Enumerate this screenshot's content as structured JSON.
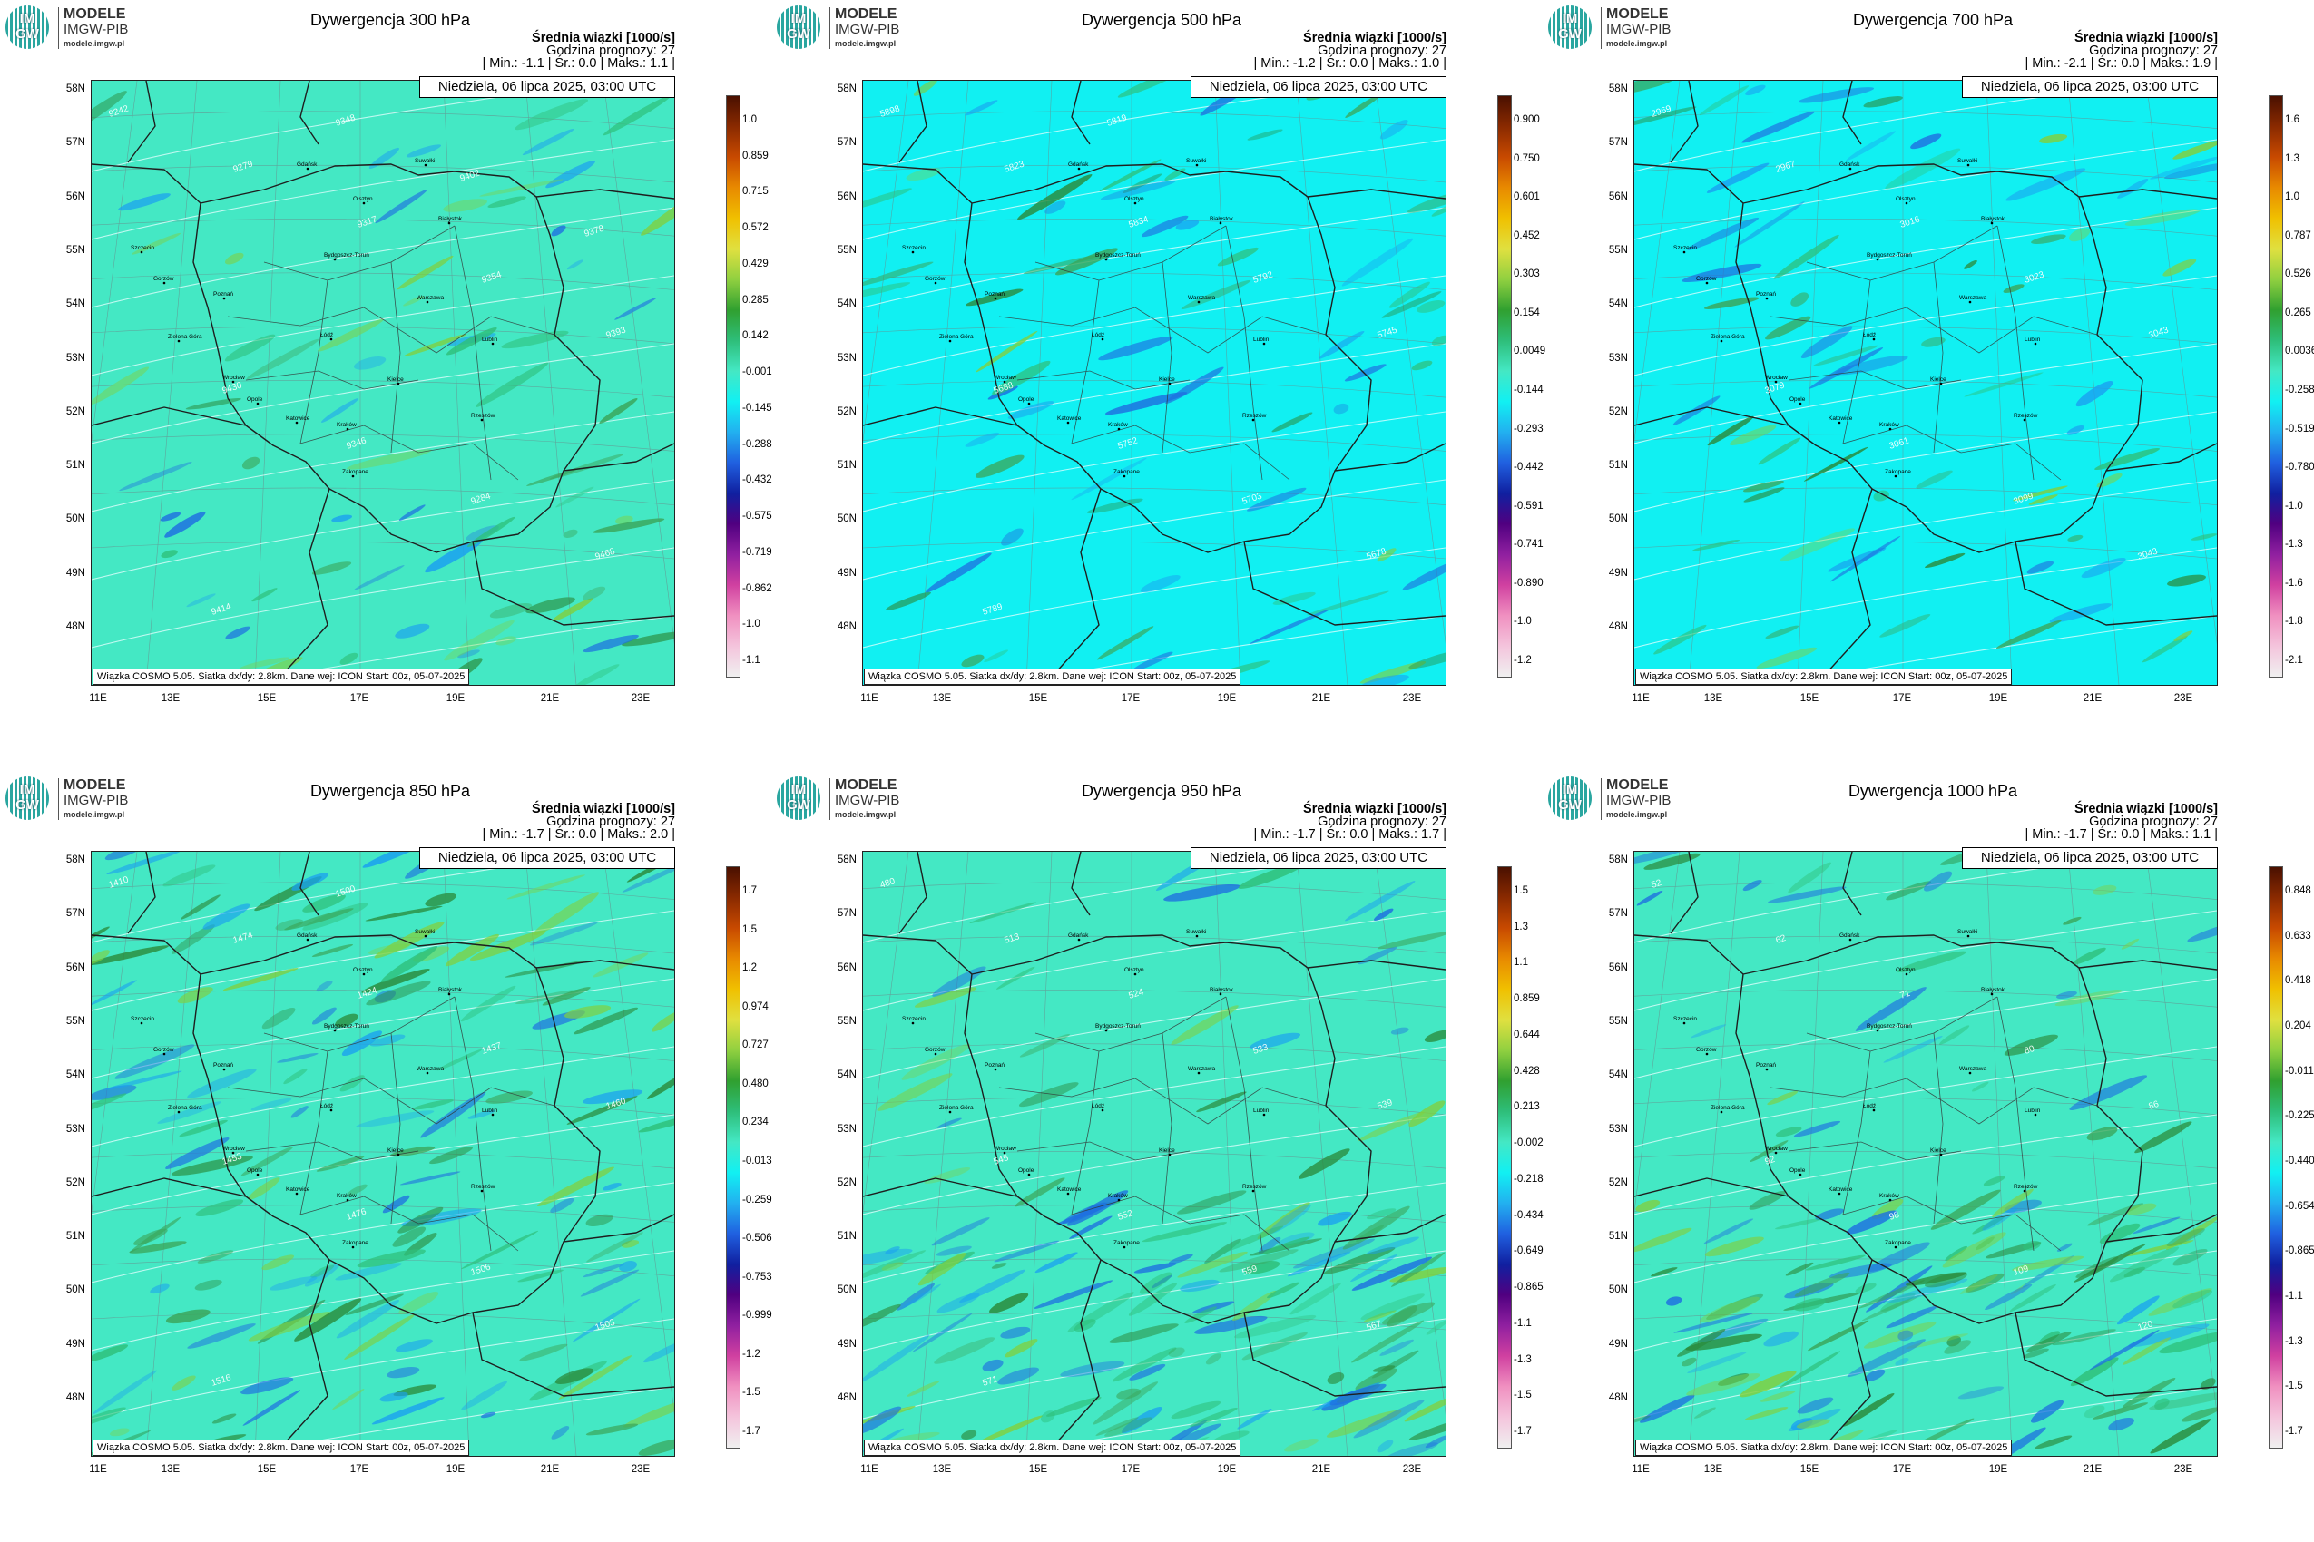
{
  "common": {
    "logo_mark": "IM GW",
    "logo_line1": "MODELE",
    "logo_line2": "IMGW-PIB",
    "logo_line3": "modele.imgw.pl",
    "subtitle": "Średnia wiązki [1000/s]",
    "forecast_hour": "Godzina prognozy: 27",
    "date": "Niedziela, 06 lipca 2025, 03:00 UTC",
    "footer": "Wiązka COSMO 5.05. Siatka dx/dy: 2.8km. Dane wej: ICON Start: 00z, 05-07-2025",
    "lat_labels": [
      "58N",
      "57N",
      "56N",
      "55N",
      "54N",
      "53N",
      "52N",
      "51N",
      "50N",
      "49N",
      "48N"
    ],
    "lon_labels": [
      "11E",
      "13E",
      "15E",
      "17E",
      "19E",
      "21E",
      "23E"
    ],
    "cities": [
      "Gdańsk",
      "Olsztyn",
      "Szczecin",
      "Suwałki",
      "Białystok",
      "Bydgoszcz-Toruń",
      "Gorzów",
      "Poznań",
      "Warszawa",
      "Zielona Góra",
      "Łódź",
      "Lublin",
      "Wrocław",
      "Kielce",
      "Opole",
      "Katowice",
      "Kraków",
      "Rzeszów",
      "Zakopane"
    ],
    "colors": {
      "background_teal": "#44e8c4",
      "background_cyan": "#11f0f2",
      "border": "#1e1e1e",
      "colorbar": [
        "#4a1000",
        "#8a2a00",
        "#c84a00",
        "#e88a00",
        "#f0c000",
        "#e0e040",
        "#90d040",
        "#30a030",
        "#2ebe7a",
        "#44e8c4",
        "#11f0f2",
        "#22b0f0",
        "#2060e0",
        "#1020a0",
        "#500080",
        "#9020a0",
        "#d040a0",
        "#f090c0",
        "#f4c4dc",
        "#f0f0f0"
      ]
    }
  },
  "panels": [
    {
      "title": "Dywergencja 300 hPa",
      "min_max": "| Min.:   -1.1 | Śr.:     0.0 | Maks.:   1.1 |",
      "bg": "#44e8c4",
      "colorbar_ticks": [
        "1.0",
        "0.859",
        "0.715",
        "0.572",
        "0.429",
        "0.285",
        "0.142",
        "-0.001",
        "-0.145",
        "-0.288",
        "-0.432",
        "-0.575",
        "-0.719",
        "-0.862",
        "-1.0",
        "-1.1"
      ],
      "contour_labels": [
        "9242",
        "9279",
        "9317",
        "9354",
        "9393",
        "9430",
        "9346",
        "9284",
        "9468",
        "9414",
        "9348",
        "9402",
        "9378"
      ]
    },
    {
      "title": "Dywergencja 500 hPa",
      "min_max": "| Min.:   -1.2 | Śr.:     0.0 | Maks.:   1.0 |",
      "bg": "#11f0f2",
      "colorbar_ticks": [
        "0.900",
        "0.750",
        "0.601",
        "0.452",
        "0.303",
        "0.154",
        "0.0049",
        "-0.144",
        "-0.293",
        "-0.442",
        "-0.591",
        "-0.741",
        "-0.890",
        "-1.0",
        "-1.2"
      ],
      "contour_labels": [
        "5898",
        "5823",
        "5834",
        "5792",
        "5745",
        "5688",
        "5752",
        "5703",
        "5678",
        "5789",
        "5819"
      ]
    },
    {
      "title": "Dywergencja 700 hPa",
      "min_max": "| Min.:   -2.1 | Śr.:     0.0 | Maks.:   1.9 |",
      "bg": "#11f0f2",
      "colorbar_ticks": [
        "1.6",
        "1.3",
        "1.0",
        "0.787",
        "0.526",
        "0.265",
        "0.0036",
        "-0.258",
        "-0.519",
        "-0.780",
        "-1.0",
        "-1.3",
        "-1.6",
        "-1.8",
        "-2.1"
      ],
      "contour_labels": [
        "2969",
        "2967",
        "3016",
        "3023",
        "3043",
        "3079",
        "3061",
        "3099",
        "3043"
      ]
    },
    {
      "title": "Dywergencja 850 hPa",
      "min_max": "| Min.:   -1.7 | Śr.:     0.0 | Maks.:   2.0 |",
      "bg": "#44e8c4",
      "colorbar_ticks": [
        "1.7",
        "1.5",
        "1.2",
        "0.974",
        "0.727",
        "0.480",
        "0.234",
        "-0.013",
        "-0.259",
        "-0.506",
        "-0.753",
        "-0.999",
        "-1.2",
        "-1.5",
        "-1.7"
      ],
      "contour_labels": [
        "1410",
        "1474",
        "1424",
        "1437",
        "1460",
        "1453",
        "1476",
        "1506",
        "1503",
        "1516",
        "1500"
      ]
    },
    {
      "title": "Dywergencja 950 hPa",
      "min_max": "| Min.:   -1.7 | Śr.:     0.0 | Maks.:   1.7 |",
      "bg": "#44e8c4",
      "colorbar_ticks": [
        "1.5",
        "1.3",
        "1.1",
        "0.859",
        "0.644",
        "0.428",
        "0.213",
        "-0.002",
        "-0.218",
        "-0.434",
        "-0.649",
        "-0.865",
        "-1.1",
        "-1.3",
        "-1.5",
        "-1.7"
      ],
      "contour_labels": [
        "480",
        "513",
        "524",
        "533",
        "539",
        "545",
        "552",
        "559",
        "567",
        "571"
      ]
    },
    {
      "title": "Dywergencja 1000 hPa",
      "min_max": "| Min.:   -1.7 | Śr.:     0.0 | Maks.:   1.1 |",
      "bg": "#44e8c4",
      "colorbar_ticks": [
        "0.848",
        "0.633",
        "0.418",
        "0.204",
        "-0.011",
        "-0.225",
        "-0.440",
        "-0.654",
        "-0.865",
        "-1.1",
        "-1.3",
        "-1.5",
        "-1.7"
      ],
      "contour_labels": [
        "52",
        "62",
        "71",
        "80",
        "86",
        "92",
        "98",
        "109",
        "120"
      ]
    }
  ]
}
